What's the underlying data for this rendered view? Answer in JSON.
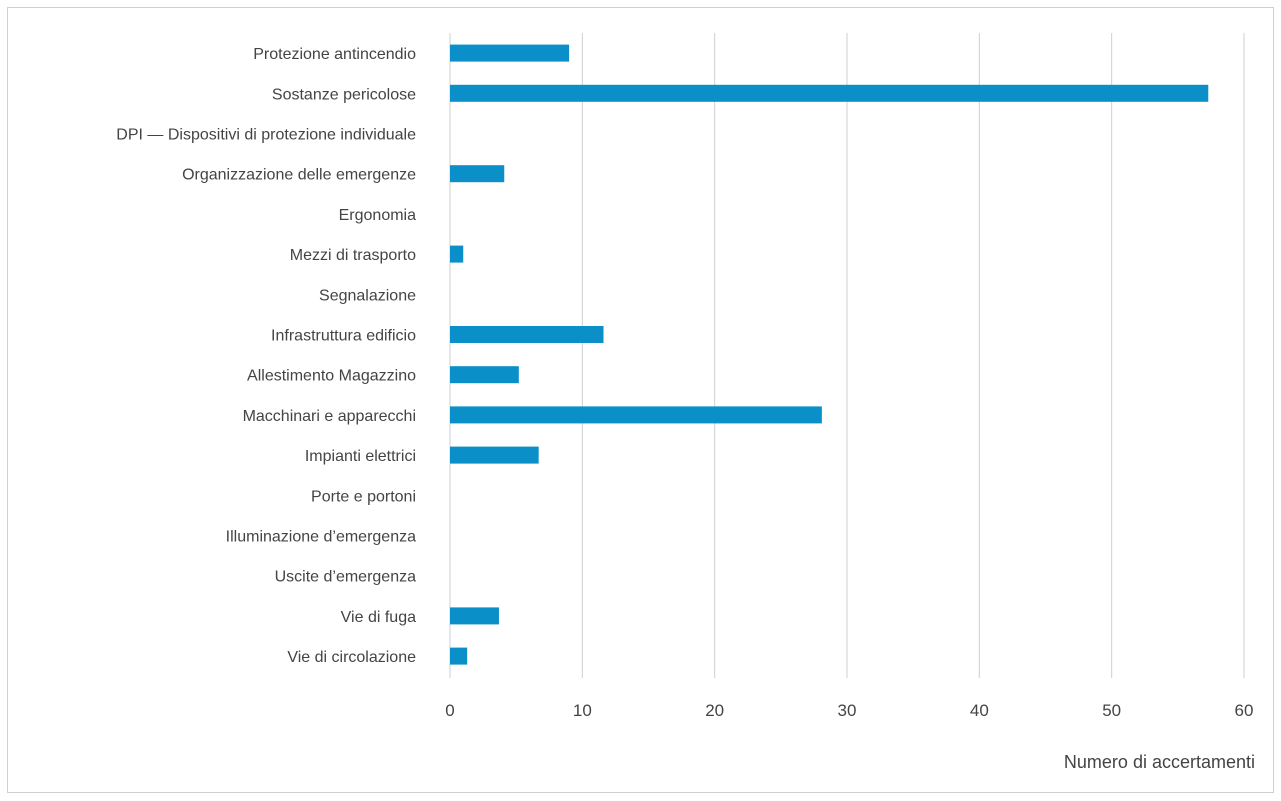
{
  "chart_data": {
    "type": "bar",
    "orientation": "horizontal",
    "categories": [
      "Protezione antincendio",
      "Sostanze pericolose",
      "DPI — Dispositivi di protezione individuale",
      "Organizzazione delle emergenze",
      "Ergonomia",
      "Mezzi di trasporto",
      "Segnalazione",
      "Infrastruttura edificio",
      "Allestimento Magazzino",
      "Macchinari e apparecchi",
      "Impianti elettrici",
      "Porte e portoni",
      "Illuminazione d’emergenza",
      "Uscite d’emergenza",
      "Vie di fuga",
      "Vie di circolazione"
    ],
    "values": [
      9,
      57.3,
      0,
      4.1,
      0,
      1,
      0,
      11.6,
      5.2,
      28.1,
      6.7,
      0,
      0,
      0,
      3.7,
      1.3
    ],
    "xlabel": "Numero di accertamenti",
    "ylabel": "",
    "xlim": [
      0,
      60
    ],
    "xticks": [
      "0",
      "10",
      "20",
      "30",
      "40",
      "50",
      "60"
    ],
    "grid": true,
    "colors": {
      "bar": "#0a8fc8",
      "grid": "#cfcfcf",
      "text": "#444444"
    }
  }
}
